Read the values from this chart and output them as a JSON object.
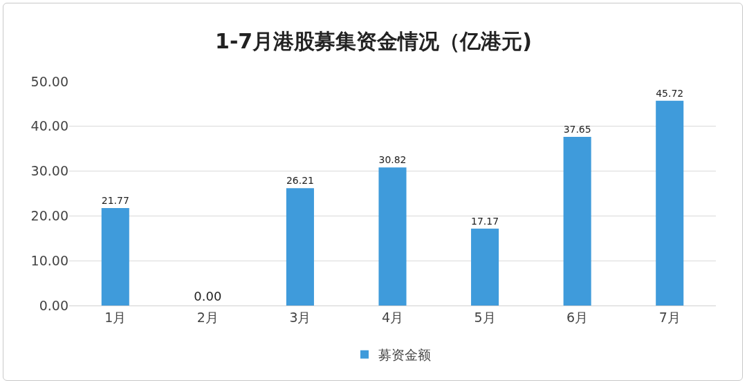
{
  "chart_data": {
    "type": "bar",
    "title": "1-7月港股募集资金情况（亿港元)",
    "categories": [
      "1月",
      "2月",
      "3月",
      "4月",
      "5月",
      "6月",
      "7月"
    ],
    "series": [
      {
        "name": "募资金额",
        "color": "#3f9bdb",
        "values": [
          21.77,
          0,
          26.21,
          30.82,
          17.17,
          37.65,
          45.72
        ],
        "value_labels": [
          "21.77",
          "0.00",
          "26.21",
          "30.82",
          "17.17",
          "37.65",
          "45.72"
        ]
      }
    ],
    "ylim": [
      0,
      50
    ],
    "yticks": [
      {
        "value": 0,
        "label": "0.00"
      },
      {
        "value": 10,
        "label": "10.00"
      },
      {
        "value": 20,
        "label": "20.00"
      },
      {
        "value": 30,
        "label": "30.00"
      },
      {
        "value": 40,
        "label": "40.00"
      },
      {
        "value": 50,
        "label": "50.00"
      }
    ],
    "grid": "y",
    "legend": "bottom"
  }
}
